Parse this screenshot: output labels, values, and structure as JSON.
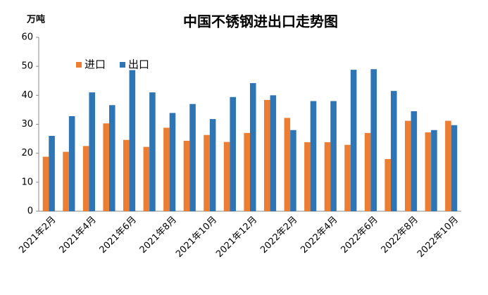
{
  "chart_data": {
    "type": "bar",
    "title": "中国不锈钢进出口走势图",
    "y_label": "万吨",
    "categories": [
      "2021年2月",
      null,
      "2021年4月",
      null,
      "2021年6月",
      null,
      "2021年8月",
      null,
      "2021年10月",
      null,
      "2021年12月",
      null,
      "2022年2月",
      null,
      "2022年4月",
      null,
      "2022年6月",
      null,
      "2022年8月",
      null,
      "2022年10月"
    ],
    "series": [
      {
        "name": "进口",
        "color": "#ed7d31",
        "values": [
          18.8,
          20.5,
          22.5,
          30.3,
          24.6,
          22.2,
          28.8,
          24.3,
          26.3,
          23.9,
          27,
          38.4,
          32.2,
          23.8,
          23.8,
          22.9,
          27,
          18,
          31.2,
          27.2,
          31.2
        ]
      },
      {
        "name": "出口",
        "color": "#2e75b6",
        "values": [
          26,
          32.8,
          41,
          36.6,
          48.7,
          41,
          33.9,
          37,
          31.8,
          39.4,
          44.2,
          40,
          28,
          38,
          38,
          48.8,
          49,
          41.5,
          34.5,
          28,
          29.7
        ]
      }
    ],
    "ylim": [
      0,
      60
    ],
    "yticks": [
      0,
      10,
      20,
      30,
      40,
      50,
      60
    ],
    "legend": "upper-left"
  }
}
